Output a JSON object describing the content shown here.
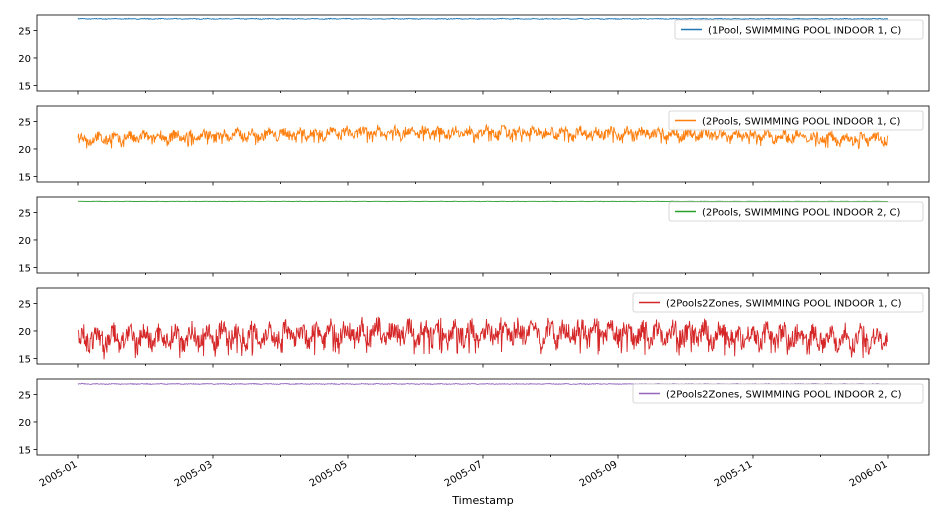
{
  "chart_data": {
    "type": "line",
    "xlabel": "Timestamp",
    "x_range": [
      "2005-01-01",
      "2006-01-01"
    ],
    "x_ticks": [
      "2005-01",
      "2005-03",
      "2005-05",
      "2005-07",
      "2005-09",
      "2005-11",
      "2006-01"
    ],
    "y_ticks": [
      15,
      20,
      25
    ],
    "ylim": [
      14,
      27.8
    ],
    "legend_position": "upper-right",
    "series": [
      {
        "name": "(1Pool, SWIMMING POOL INDOOR 1, C)",
        "color": "#1f77b4",
        "baseline": 27.0,
        "amp_low": 27.0,
        "amp_high": 27.2,
        "seasonal": 0.0
      },
      {
        "name": "(2Pools, SWIMMING POOL INDOOR 1, C)",
        "color": "#ff7f0e",
        "baseline": 21.5,
        "amp_low": 20.3,
        "amp_high": 23.2,
        "seasonal": 1.3
      },
      {
        "name": "(2Pools, SWIMMING POOL INDOOR 2, C)",
        "color": "#2ca02c",
        "baseline": 27.0,
        "amp_low": 26.95,
        "amp_high": 27.05,
        "seasonal": 0.0
      },
      {
        "name": "(2Pools2Zones, SWIMMING POOL INDOOR 1, C)",
        "color": "#d62728",
        "baseline": 18.5,
        "amp_low": 15.5,
        "amp_high": 21.5,
        "seasonal": 1.2
      },
      {
        "name": "(2Pools2Zones, SWIMMING POOL INDOOR 2, C)",
        "color": "#9467bd",
        "baseline": 26.9,
        "amp_low": 26.8,
        "amp_high": 27.0,
        "seasonal": 0.0
      }
    ]
  }
}
